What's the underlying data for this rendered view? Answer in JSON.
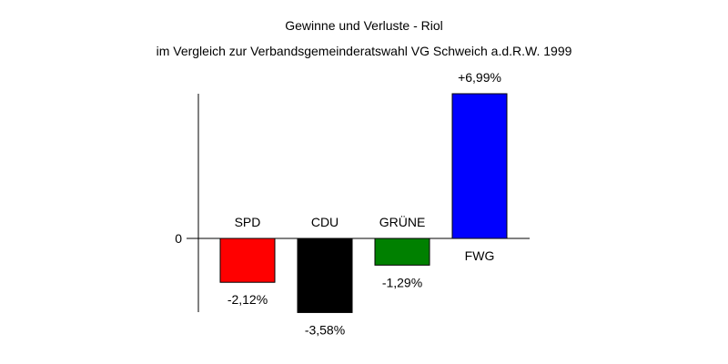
{
  "chart_data": {
    "type": "bar",
    "title": "Gewinne und Verluste - Riol",
    "subtitle": "im Vergleich zur Verbandsgemeinderatswahl VG Schweich a.d.R.W. 1999",
    "categories": [
      "SPD",
      "CDU",
      "GRÜNE",
      "FWG"
    ],
    "values": [
      -2.12,
      -3.58,
      -1.29,
      6.99
    ],
    "value_labels": [
      "-2,12%",
      "-3,58%",
      "-1,29%",
      "+6,99%"
    ],
    "colors": [
      "#ff0000",
      "#000000",
      "#008000",
      "#0000ff"
    ],
    "y_tick_label": "0",
    "xlabel": "",
    "ylabel": "",
    "ylim": [
      -3.58,
      6.99
    ],
    "grid": false
  }
}
